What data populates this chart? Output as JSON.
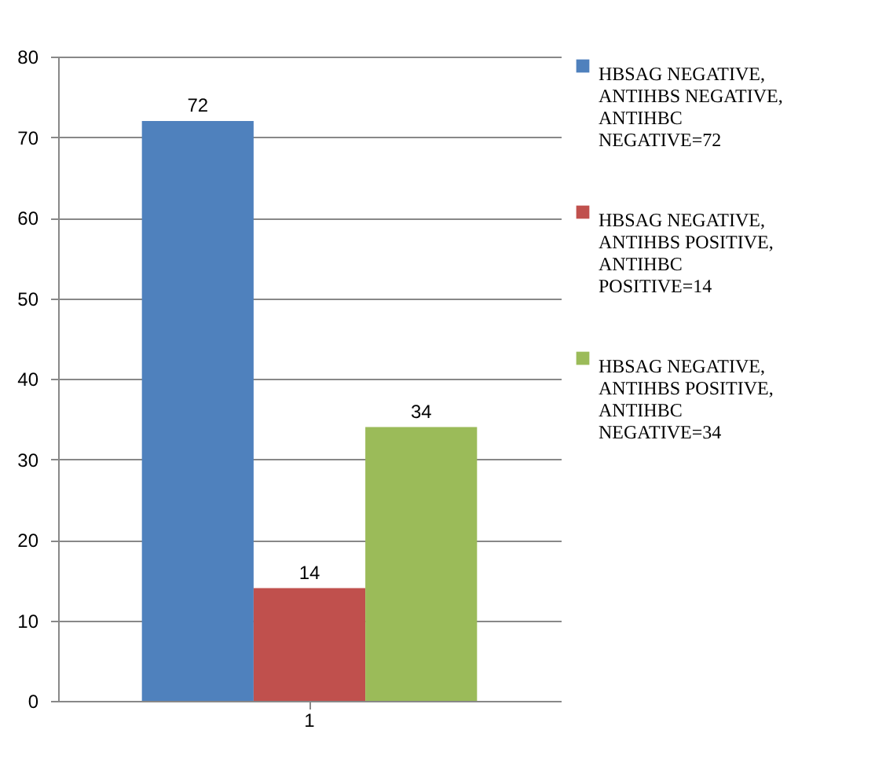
{
  "chart_data": {
    "type": "bar",
    "categories": [
      "1"
    ],
    "series": [
      {
        "name": "HBSAG NEGATIVE,ANTIHBS NEGATIVE,ANTIHBC NEGATIVE=72",
        "color": "#4f81bd",
        "values": [
          72
        ]
      },
      {
        "name": "HBSAG NEGATIVE,ANTIHBS POSITIVE,ANTIHBC POSITIVE=14",
        "color": "#c0504d",
        "values": [
          14
        ]
      },
      {
        "name": "HBSAG NEGATIVE, ANTIHBS POSITIVE, ANTIHBC NEGATIVE=34",
        "color": "#9bbb59",
        "values": [
          34
        ]
      }
    ],
    "ylim": [
      0,
      80
    ],
    "yticks": [
      0,
      10,
      20,
      30,
      40,
      50,
      60,
      70,
      80
    ],
    "grid": "y",
    "data_labels": true,
    "legend": "right"
  }
}
